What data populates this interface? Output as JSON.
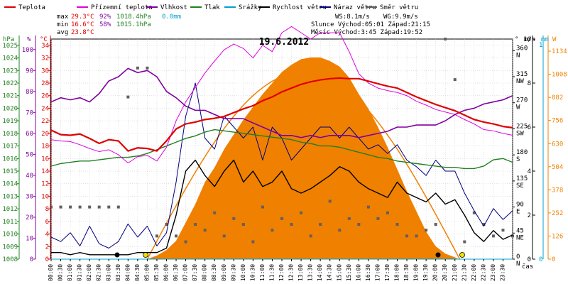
{
  "chart_data": {
    "type": "line",
    "title": "19.6.2012",
    "xlabel": "čas",
    "x_ticks": [
      "00:00",
      "00:30",
      "01:00",
      "01:30",
      "02:00",
      "02:30",
      "03:00",
      "03:30",
      "04:00",
      "04:30",
      "05:00",
      "05:30",
      "06:00",
      "06:30",
      "07:00",
      "07:30",
      "08:00",
      "08:30",
      "09:00",
      "09:30",
      "10:00",
      "10:30",
      "11:00",
      "11:30",
      "12:00",
      "12:30",
      "13:00",
      "13:30",
      "14:00",
      "14:30",
      "15:00",
      "15:30",
      "16:00",
      "16:30",
      "17:00",
      "17:30",
      "18:00",
      "18:30",
      "19:00",
      "19:30",
      "20:00",
      "20:30",
      "21:00",
      "21:30",
      "22:00",
      "22:30",
      "23:00",
      "23:30"
    ],
    "legend": [
      {
        "label": "Teplota",
        "color": "#e00000"
      },
      {
        "label": "Přízemní teplota",
        "color": "#e000e0"
      },
      {
        "label": "Vlhkost",
        "color": "#8000a0"
      },
      {
        "label": "Tlak",
        "color": "#208020"
      },
      {
        "label": "Srážky",
        "color": "#00a0d0"
      },
      {
        "label": "Rychlost větru",
        "color": "#000000"
      },
      {
        "label": "Náraz větru",
        "color": "#000080"
      },
      {
        "label": "Směr větru",
        "color": "#606060"
      }
    ],
    "stats": {
      "max": {
        "label": "max",
        "temp": "29.3°C",
        "hum": "92%",
        "press": "1018.4hPa",
        "rain": "0.0mm"
      },
      "min": {
        "label": "min",
        "temp": "16.6°C",
        "hum": "58%",
        "press": "1015.1hPa"
      },
      "avg": {
        "label": "avg",
        "temp": "23.8°C"
      },
      "wind_speed": "WS:8.1m/s",
      "wind_gust": "WG:9.9m/s",
      "sun_line": "Slunce Východ:05:01  Západ:21:15",
      "moon_line": "Měsíc  Východ:3:45  Západ:19:52"
    },
    "axes": {
      "pressure": {
        "unit": "hPa",
        "ticks": [
          "1008",
          "1009",
          "1010",
          "1011",
          "1012",
          "1013",
          "1014",
          "1015",
          "1016",
          "1017",
          "1018",
          "1019",
          "1020",
          "1021",
          "1022",
          "1023",
          "1024",
          "1025"
        ],
        "range": [
          1008,
          1025.5
        ]
      },
      "humidity": {
        "unit": "%",
        "ticks": [
          "0",
          "10",
          "20",
          "30",
          "40",
          "50",
          "60",
          "70",
          "80",
          "90",
          "100"
        ],
        "range": [
          0,
          105
        ]
      },
      "temperature": {
        "unit": "°C",
        "ticks": [
          "0",
          "2",
          "4",
          "6",
          "8",
          "10",
          "12",
          "14",
          "16",
          "18",
          "20",
          "22",
          "24",
          "26",
          "28",
          "30",
          "32",
          "34"
        ],
        "range": [
          0,
          35
        ]
      },
      "direction": {
        "unit": "°",
        "ticks": [
          "0",
          "45",
          "90",
          "135",
          "180",
          "225",
          "270",
          "315",
          "360"
        ],
        "labels": [
          "N",
          "NE",
          "E",
          "SE",
          "S",
          "SW",
          "W",
          "NW",
          "N"
        ],
        "range": [
          0,
          380
        ]
      },
      "wind": {
        "unit": "m/s",
        "ticks": [
          "0",
          "2",
          "4",
          "6",
          "8",
          "10"
        ],
        "range": [
          0,
          10
        ]
      },
      "rain": {
        "unit": "mm",
        "ticks": [
          "0",
          "1"
        ]
      },
      "solar": {
        "unit": "W",
        "ticks": [
          "0",
          "126",
          "252",
          "378",
          "504",
          "630",
          "756",
          "882",
          "1008",
          "1134"
        ],
        "range": [
          0,
          1200
        ]
      }
    },
    "series": [
      {
        "name": "Teplota",
        "axis": "temperature",
        "color": "#e00000",
        "x": [
          0,
          0.5,
          1,
          1.5,
          2,
          2.5,
          3,
          3.5,
          4,
          4.5,
          5,
          5.5,
          6,
          6.5,
          7,
          7.5,
          8,
          8.5,
          9,
          9.5,
          10,
          10.5,
          11,
          11.5,
          12,
          12.5,
          13,
          13.5,
          14,
          14.5,
          15,
          15.5,
          16,
          16.5,
          17,
          17.5,
          18,
          18.5,
          19,
          19.5,
          20,
          20.5,
          21,
          21.5,
          22,
          22.5,
          23,
          23.5,
          24
        ],
        "y": [
          20.5,
          19.8,
          19.7,
          19.9,
          19.2,
          18.4,
          19.0,
          18.8,
          17.2,
          17.7,
          17.6,
          17.2,
          18.8,
          20.7,
          21.5,
          21.8,
          22.2,
          22.4,
          22.7,
          23.3,
          23.9,
          24.4,
          25.2,
          25.8,
          26.6,
          27.2,
          27.8,
          28.2,
          28.5,
          28.7,
          28.8,
          28.7,
          28.7,
          28.3,
          27.9,
          27.5,
          27.2,
          26.5,
          25.8,
          25.2,
          24.6,
          24.1,
          23.6,
          22.9,
          22.2,
          21.8,
          21.5,
          21.1,
          20.9
        ]
      },
      {
        "name": "Přízemní teplota",
        "axis": "temperature",
        "color": "#e000e0",
        "x": [
          0,
          0.5,
          1,
          1.5,
          2,
          2.5,
          3,
          3.5,
          4,
          4.5,
          5,
          5.5,
          6,
          6.5,
          7,
          7.5,
          8,
          8.5,
          9,
          9.5,
          10,
          10.5,
          11,
          11.5,
          12,
          12.5,
          13,
          13.5,
          14,
          14.5,
          15,
          15.5,
          16,
          16.5,
          17,
          17.5,
          18,
          18.5,
          19,
          19.5,
          20,
          20.5,
          21,
          21.5,
          22,
          22.5,
          23,
          23.5,
          24
        ],
        "y": [
          19.0,
          18.8,
          18.7,
          18.2,
          17.6,
          17.1,
          17.4,
          16.6,
          15.3,
          16.3,
          16.5,
          15.6,
          17.8,
          22.0,
          25.0,
          27.3,
          29.6,
          31.5,
          33.3,
          34.2,
          33.5,
          32.0,
          34.0,
          33.0,
          36.0,
          37.0,
          36.0,
          35.0,
          36.0,
          36.0,
          36.0,
          33.0,
          29.5,
          28.0,
          27.2,
          26.8,
          26.5,
          26.0,
          25.1,
          24.5,
          23.8,
          23.4,
          23.0,
          22.2,
          21.5,
          20.6,
          20.4,
          20.0,
          19.7
        ]
      },
      {
        "name": "Vlhkost",
        "axis": "humidity",
        "color": "#8000a0",
        "x": [
          0,
          0.5,
          1,
          1.5,
          2,
          2.5,
          3,
          3.5,
          4,
          4.5,
          5,
          5.5,
          6,
          6.5,
          7,
          7.5,
          8,
          8.5,
          9,
          9.5,
          10,
          10.5,
          11,
          11.5,
          12,
          12.5,
          13,
          13.5,
          14,
          14.5,
          15,
          15.5,
          16,
          16.5,
          17,
          17.5,
          18,
          18.5,
          19,
          19.5,
          20,
          20.5,
          21,
          21.5,
          22,
          22.5,
          23,
          23.5,
          24
        ],
        "y": [
          75,
          77,
          76,
          77,
          75,
          79,
          85,
          87,
          91,
          89,
          90,
          87,
          80,
          77,
          73,
          71,
          71,
          69,
          67,
          67,
          67,
          65,
          63,
          61,
          59,
          59,
          58,
          59,
          58,
          59,
          59,
          59,
          58,
          59,
          60,
          61,
          63,
          63,
          64,
          64,
          64,
          66,
          69,
          71,
          72,
          74,
          75,
          76,
          78
        ]
      },
      {
        "name": "Tlak",
        "axis": "pressure",
        "color": "#208020",
        "x": [
          0,
          0.5,
          1,
          1.5,
          2,
          2.5,
          3,
          3.5,
          4,
          4.5,
          5,
          5.5,
          6,
          6.5,
          7,
          7.5,
          8,
          8.5,
          9,
          9.5,
          10,
          10.5,
          11,
          11.5,
          12,
          12.5,
          13,
          13.5,
          14,
          14.5,
          15,
          15.5,
          16,
          16.5,
          17,
          17.5,
          18,
          18.5,
          19,
          19.5,
          20,
          20.5,
          21,
          21.5,
          22,
          22.5,
          23,
          23.5,
          24
        ],
        "y": [
          1015.4,
          1015.6,
          1015.7,
          1015.8,
          1015.8,
          1015.9,
          1016.0,
          1016.1,
          1016.1,
          1016.2,
          1016.4,
          1016.7,
          1017.0,
          1017.3,
          1017.6,
          1017.8,
          1018.1,
          1018.3,
          1018.2,
          1018.1,
          1018.0,
          1017.9,
          1017.8,
          1017.7,
          1017.6,
          1017.5,
          1017.3,
          1017.2,
          1017.0,
          1017.0,
          1016.9,
          1016.7,
          1016.5,
          1016.3,
          1016.1,
          1016.0,
          1015.8,
          1015.7,
          1015.6,
          1015.5,
          1015.4,
          1015.3,
          1015.3,
          1015.2,
          1015.2,
          1015.4,
          1015.9,
          1016.0,
          1015.7
        ]
      },
      {
        "name": "Rychlost větru",
        "axis": "wind",
        "color": "#000000",
        "x": [
          0,
          0.5,
          1,
          1.5,
          2,
          2.5,
          3,
          3.5,
          4,
          4.5,
          5,
          5.5,
          6,
          6.5,
          7,
          7.5,
          8,
          8.5,
          9,
          9.5,
          10,
          10.5,
          11,
          11.5,
          12,
          12.5,
          13,
          13.5,
          14,
          14.5,
          15,
          15.5,
          16,
          16.5,
          17,
          17.5,
          18,
          18.5,
          19,
          19.5,
          20,
          20.5,
          21,
          21.5,
          22,
          22.5,
          23,
          23.5,
          24
        ],
        "y": [
          0.3,
          0.3,
          0.2,
          0.3,
          0.2,
          0.2,
          0.2,
          0.2,
          0.2,
          0.3,
          0.3,
          0.3,
          0.5,
          2.0,
          4.0,
          4.5,
          3.8,
          3.3,
          4.0,
          4.5,
          3.5,
          4.0,
          3.3,
          3.5,
          4.0,
          3.2,
          3.0,
          3.2,
          3.5,
          3.8,
          4.2,
          4.0,
          3.5,
          3.2,
          3.0,
          2.8,
          3.5,
          3.0,
          2.8,
          2.6,
          3.0,
          2.5,
          2.7,
          2.0,
          1.2,
          0.8,
          1.3,
          0.9,
          1.1
        ]
      },
      {
        "name": "Náraz větru",
        "axis": "wind",
        "color": "#000080",
        "x": [
          0,
          0.5,
          1,
          1.5,
          2,
          2.5,
          3,
          3.5,
          4,
          4.5,
          5,
          5.5,
          6,
          6.5,
          7,
          7.5,
          8,
          8.5,
          9,
          9.5,
          10,
          10.5,
          11,
          11.5,
          12,
          12.5,
          13,
          13.5,
          14,
          14.5,
          15,
          15.5,
          16,
          16.5,
          17,
          17.5,
          18,
          18.5,
          19,
          19.5,
          20,
          20.5,
          21,
          21.5,
          22,
          22.5,
          23,
          23.5,
          24
        ],
        "y": [
          1.0,
          0.8,
          1.2,
          0.6,
          1.5,
          0.7,
          0.5,
          0.8,
          1.6,
          1.0,
          1.5,
          0.6,
          1.2,
          3.5,
          6.5,
          8.0,
          5.5,
          5.0,
          6.5,
          6.0,
          5.5,
          6.0,
          4.5,
          6.0,
          5.5,
          4.5,
          5.0,
          5.5,
          6.0,
          6.0,
          5.5,
          6.0,
          5.5,
          5.0,
          5.2,
          4.8,
          5.2,
          4.5,
          4.2,
          3.8,
          4.5,
          4.0,
          4.0,
          3.0,
          2.2,
          1.5,
          2.3,
          1.8,
          2.2
        ]
      },
      {
        "name": "Směr větru",
        "axis": "direction",
        "color": "#606060",
        "x": [
          0,
          0.5,
          1,
          1.5,
          2,
          2.5,
          3,
          3.5,
          4,
          4.5,
          5,
          5.5,
          6,
          6.5,
          7,
          7.5,
          8,
          8.5,
          9,
          9.5,
          10,
          10.5,
          11,
          11.5,
          12,
          12.5,
          13,
          13.5,
          14,
          14.5,
          15,
          15.5,
          16,
          16.5,
          17,
          17.5,
          18,
          18.5,
          19,
          19.5,
          20,
          20.5,
          21,
          21.5,
          22,
          22.5,
          23,
          23.5,
          24
        ],
        "y": [
          90,
          90,
          90,
          90,
          90,
          90,
          90,
          90,
          280,
          330,
          330,
          40,
          60,
          40,
          30,
          60,
          50,
          80,
          40,
          70,
          60,
          30,
          90,
          50,
          70,
          60,
          80,
          40,
          60,
          100,
          50,
          70,
          60,
          90,
          70,
          80,
          60,
          40,
          40,
          50,
          60,
          380,
          310,
          30,
          80,
          60,
          40,
          50,
          40
        ]
      },
      {
        "name": "Srážky",
        "axis": "rain",
        "color": "#00a0d0",
        "x": [
          0,
          24
        ],
        "y": [
          0,
          0
        ]
      },
      {
        "name": "Sluneční záření",
        "axis": "solar",
        "color": "#f08000",
        "x": [
          5.0,
          5.5,
          6,
          6.5,
          7,
          7.5,
          8,
          8.5,
          9,
          9.5,
          10,
          10.5,
          11,
          11.5,
          12,
          12.5,
          13,
          13.5,
          14,
          14.5,
          15,
          15.5,
          16,
          16.5,
          17,
          17.5,
          18,
          18.5,
          19,
          19.5,
          20,
          20.5,
          21,
          21.2
        ],
        "y": [
          0,
          20,
          50,
          100,
          200,
          300,
          420,
          500,
          600,
          680,
          760,
          830,
          900,
          960,
          1020,
          1060,
          1090,
          1100,
          1100,
          1080,
          1050,
          990,
          900,
          820,
          720,
          610,
          490,
          370,
          260,
          150,
          70,
          30,
          10,
          0
        ]
      }
    ]
  }
}
